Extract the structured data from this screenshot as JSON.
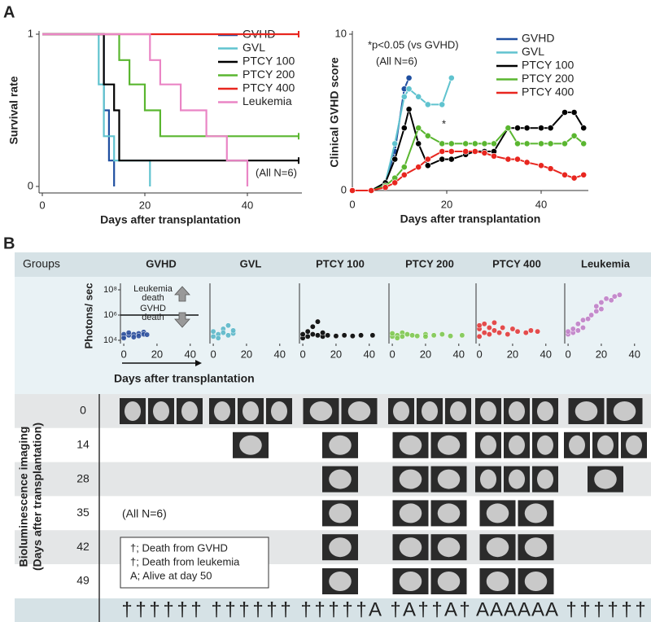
{
  "panel_labels": [
    "A",
    "B"
  ],
  "chart_data": [
    {
      "type": "step",
      "ylabel": "Survival rate",
      "xlabel": "Days after transplantation",
      "xlim": [
        0,
        50
      ],
      "xticks": [
        0,
        20,
        40
      ],
      "ylim": [
        0,
        1
      ],
      "yticks": [
        0,
        1
      ],
      "annotation": "(All N=6)",
      "series": [
        {
          "name": "GVHD",
          "color": "#1f4fa0",
          "x": [
            0,
            12,
            13,
            14
          ],
          "values": [
            1,
            0.5,
            0.17,
            0
          ]
        },
        {
          "name": "GVL",
          "color": "#60c3cf",
          "x": [
            0,
            11,
            12,
            14,
            21
          ],
          "values": [
            1,
            0.67,
            0.33,
            0.17,
            0
          ]
        },
        {
          "name": "PTCY 100",
          "color": "#000000",
          "x": [
            0,
            12,
            14,
            15,
            50
          ],
          "values": [
            1,
            0.67,
            0.5,
            0.17,
            0.17
          ]
        },
        {
          "name": "PTCY 200",
          "color": "#5ab630",
          "x": [
            0,
            15,
            17,
            20,
            23,
            50
          ],
          "values": [
            1,
            0.83,
            0.67,
            0.5,
            0.33,
            0.33
          ]
        },
        {
          "name": "PTCY 400",
          "color": "#e8261f",
          "x": [
            0,
            50
          ],
          "values": [
            1,
            1
          ]
        },
        {
          "name": "Leukemia",
          "color": "#ea85c5",
          "x": [
            0,
            21,
            23,
            27,
            32,
            36,
            40
          ],
          "values": [
            1,
            0.83,
            0.67,
            0.5,
            0.33,
            0.17,
            0
          ]
        }
      ]
    },
    {
      "type": "line",
      "ylabel": "Clinical GVHD score",
      "xlabel": "Days after transplantation",
      "xlim": [
        0,
        50
      ],
      "xticks": [
        0,
        20,
        40
      ],
      "ylim": [
        0,
        10
      ],
      "yticks": [
        0,
        10
      ],
      "annotations": [
        "*p<0.05 (vs GVHD)",
        "(All N=6)",
        "*"
      ],
      "series": [
        {
          "name": "GVHD",
          "color": "#1f4fa0",
          "x": [
            0,
            4,
            7,
            9,
            11,
            12
          ],
          "values": [
            0,
            0,
            0.5,
            2.5,
            6.5,
            7.2
          ]
        },
        {
          "name": "GVL",
          "color": "#60c3cf",
          "x": [
            0,
            4,
            7,
            9,
            11,
            12,
            14,
            16,
            19,
            21
          ],
          "values": [
            0,
            0,
            0.5,
            3,
            6,
            6.5,
            6,
            5.5,
            5.5,
            7.2
          ]
        },
        {
          "name": "PTCY 100",
          "color": "#000000",
          "x": [
            0,
            4,
            7,
            9,
            11,
            12,
            14,
            16,
            19,
            21,
            24,
            26,
            28,
            30,
            33,
            35,
            37,
            40,
            42,
            45,
            47,
            49
          ],
          "values": [
            0,
            0,
            0.5,
            2,
            4,
            5.2,
            3,
            1.6,
            2,
            2,
            2.3,
            2.5,
            2.5,
            2.5,
            4,
            4,
            4,
            4,
            4,
            5,
            5,
            4
          ]
        },
        {
          "name": "PTCY 200",
          "color": "#5ab630",
          "x": [
            0,
            4,
            7,
            9,
            11,
            14,
            16,
            19,
            21,
            24,
            26,
            28,
            30,
            33,
            35,
            37,
            40,
            42,
            45,
            47,
            49
          ],
          "values": [
            0,
            0,
            0.3,
            0.8,
            1.5,
            4,
            3.5,
            3,
            3,
            3,
            3,
            3,
            3,
            4,
            3,
            3,
            3,
            3,
            3,
            3.5,
            3
          ]
        },
        {
          "name": "PTCY 400",
          "color": "#e8261f",
          "x": [
            0,
            4,
            7,
            9,
            11,
            14,
            16,
            19,
            21,
            24,
            26,
            28,
            30,
            33,
            35,
            37,
            40,
            42,
            45,
            47,
            49
          ],
          "values": [
            0,
            0,
            0.2,
            0.5,
            1,
            1.5,
            2,
            2.5,
            2.5,
            2.5,
            2.5,
            2.4,
            2.2,
            2,
            2,
            1.8,
            1.6,
            1.4,
            1,
            0.8,
            1
          ]
        }
      ]
    },
    {
      "type": "scatter",
      "title": "GVHD",
      "ylabel": "Photons/ sec",
      "xlabel": "Days after transplantation",
      "log_y": true,
      "xlim": [
        -2,
        45
      ],
      "xticks": [
        0,
        20,
        40
      ],
      "ylim": [
        10000,
        100000000
      ],
      "yticks": [
        {
          "value": 10000,
          "label": "10⁴"
        },
        {
          "value": 1000000,
          "label": "10⁶"
        },
        {
          "value": 100000000,
          "label": "10⁸"
        }
      ],
      "threshold": 1000000,
      "annotations": [
        [
          "Leukemia",
          "death"
        ],
        [
          "GVHD",
          "death"
        ]
      ],
      "color": "#2b4f9c",
      "x": [
        0,
        0,
        0,
        3,
        3,
        6,
        6,
        9,
        9,
        12,
        12,
        14
      ],
      "values": [
        20000,
        30000,
        15000,
        25000,
        40000,
        30000,
        18000,
        35000,
        22000,
        45000,
        30000,
        28000
      ]
    },
    {
      "type": "scatter",
      "title": "GVL",
      "log_y": true,
      "xlim": [
        -2,
        45
      ],
      "xticks": [
        0,
        20,
        40
      ],
      "ylim": [
        10000,
        100000000
      ],
      "color": "#5bb7c9",
      "x": [
        0,
        0,
        3,
        3,
        6,
        6,
        9,
        9,
        12,
        12
      ],
      "values": [
        20000,
        50000,
        30000,
        15000,
        80000,
        40000,
        25000,
        150000,
        35000,
        60000
      ]
    },
    {
      "type": "scatter",
      "title": "PTCY 100",
      "log_y": true,
      "xlim": [
        -2,
        45
      ],
      "xticks": [
        0,
        20,
        40
      ],
      "ylim": [
        10000,
        100000000
      ],
      "color": "#000000",
      "x": [
        0,
        0,
        3,
        3,
        6,
        6,
        9,
        9,
        12,
        12,
        15,
        20,
        25,
        30,
        35,
        42
      ],
      "values": [
        15000,
        30000,
        20000,
        50000,
        30000,
        120000,
        25000,
        300000,
        20000,
        40000,
        25000,
        22000,
        25000,
        22000,
        25000,
        25000
      ]
    },
    {
      "type": "scatter",
      "title": "PTCY 200",
      "log_y": true,
      "xlim": [
        -2,
        45
      ],
      "xticks": [
        0,
        20,
        40
      ],
      "ylim": [
        10000,
        100000000
      ],
      "color": "#7ec850",
      "x": [
        0,
        0,
        3,
        3,
        6,
        6,
        9,
        12,
        15,
        20,
        20,
        25,
        30,
        35,
        42
      ],
      "values": [
        20000,
        35000,
        25000,
        15000,
        40000,
        20000,
        30000,
        25000,
        22000,
        30000,
        20000,
        25000,
        30000,
        22000,
        25000
      ]
    },
    {
      "type": "scatter",
      "title": "PTCY 400",
      "log_y": true,
      "xlim": [
        -2,
        45
      ],
      "xticks": [
        0,
        20,
        40
      ],
      "ylim": [
        10000,
        100000000
      ],
      "color": "#e23a3a",
      "x": [
        0,
        0,
        0,
        3,
        3,
        6,
        6,
        9,
        9,
        12,
        14,
        17,
        20,
        23,
        28,
        31,
        35
      ],
      "values": [
        20000,
        80000,
        150000,
        40000,
        200000,
        100000,
        30000,
        60000,
        250000,
        40000,
        100000,
        30000,
        80000,
        50000,
        40000,
        60000,
        50000
      ]
    },
    {
      "type": "scatter",
      "title": "Leukemia",
      "log_y": true,
      "xlim": [
        -2,
        45
      ],
      "xticks": [
        0,
        20,
        40
      ],
      "ylim": [
        10000,
        100000000
      ],
      "color": "#c080c8",
      "x": [
        0,
        0,
        3,
        3,
        6,
        6,
        9,
        9,
        12,
        14,
        17,
        17,
        20,
        20,
        23,
        26,
        28,
        31
      ],
      "values": [
        30000,
        50000,
        40000,
        80000,
        60000,
        200000,
        100000,
        400000,
        500000,
        1000000,
        2000000,
        5000000,
        3000000,
        10000000,
        20000000,
        15000000,
        30000000,
        40000000
      ]
    }
  ],
  "panel_b": {
    "groups_header": "Groups",
    "imaging_label": [
      "Bioluminescence imaging",
      "(Days after transplantation)"
    ],
    "days": [
      0,
      14,
      28,
      35,
      42,
      49
    ],
    "tiles": [
      [
        3,
        3,
        2,
        3,
        3,
        2
      ],
      [
        0,
        1,
        1,
        2,
        3,
        3
      ],
      [
        0,
        0,
        1,
        2,
        3,
        1
      ],
      [
        0,
        0,
        1,
        2,
        2,
        0
      ],
      [
        0,
        0,
        1,
        2,
        2,
        0
      ],
      [
        0,
        0,
        1,
        2,
        2,
        0
      ]
    ],
    "note": "(All N=6)",
    "legend": [
      {
        "text": "†; Death from GVHD",
        "color": "#29a9e0"
      },
      {
        "text": "†; Death from leukemia",
        "color": "#e8201c"
      },
      {
        "text": "A; Alive at day 50",
        "color": "#2bb24b"
      }
    ],
    "outcomes": [
      {
        "symbols": [
          "†",
          "†",
          "†",
          "†",
          "†",
          "†"
        ],
        "colors": [
          "#29a9e0",
          "#29a9e0",
          "#29a9e0",
          "#29a9e0",
          "#29a9e0",
          "#29a9e0"
        ]
      },
      {
        "symbols": [
          "†",
          "†",
          "†",
          "†",
          "†",
          "†"
        ],
        "colors": [
          "#29a9e0",
          "#29a9e0",
          "#29a9e0",
          "#29a9e0",
          "#29a9e0",
          "#29a9e0"
        ]
      },
      {
        "symbols": [
          "†",
          "†",
          "†",
          "†",
          "†",
          "A"
        ],
        "colors": [
          "#29a9e0",
          "#29a9e0",
          "#29a9e0",
          "#29a9e0",
          "#29a9e0",
          "#2bb24b"
        ]
      },
      {
        "symbols": [
          "†",
          "A",
          "†",
          "†",
          "A",
          "†"
        ],
        "colors": [
          "#29a9e0",
          "#2bb24b",
          "#29a9e0",
          "#29a9e0",
          "#2bb24b",
          "#29a9e0"
        ]
      },
      {
        "symbols": [
          "A",
          "A",
          "A",
          "A",
          "A",
          "A"
        ],
        "colors": [
          "#2bb24b",
          "#2bb24b",
          "#2bb24b",
          "#2bb24b",
          "#2bb24b",
          "#2bb24b"
        ]
      },
      {
        "symbols": [
          "†",
          "†",
          "†",
          "†",
          "†",
          "†"
        ],
        "colors": [
          "#e8201c",
          "#e8201c",
          "#e8201c",
          "#e8201c",
          "#e8201c",
          "#e8201c"
        ]
      }
    ]
  }
}
